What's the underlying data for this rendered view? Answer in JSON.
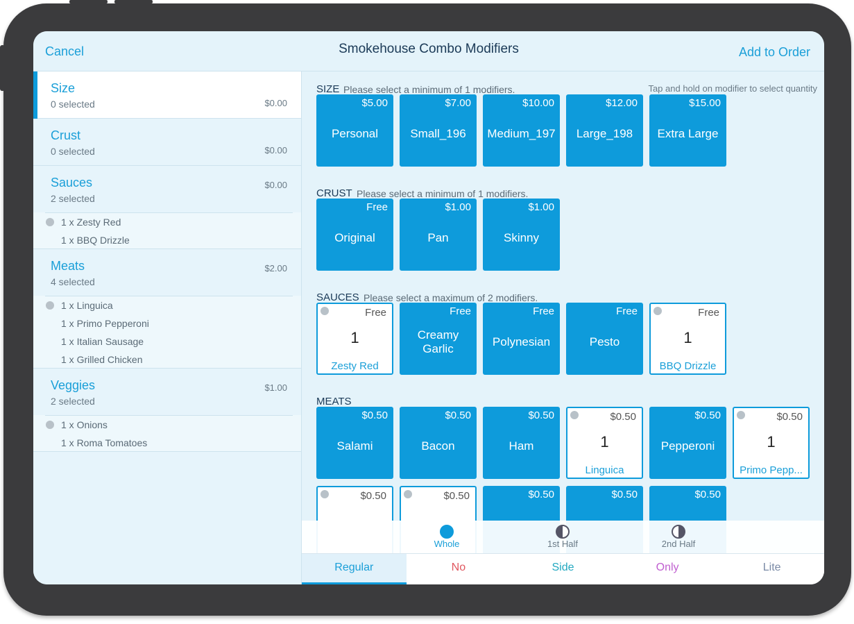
{
  "header": {
    "cancel": "Cancel",
    "title": "Smokehouse Combo Modifiers",
    "add": "Add to Order"
  },
  "groups": [
    {
      "name": "Size",
      "selected": "0 selected",
      "price": "$0.00",
      "items": []
    },
    {
      "name": "Crust",
      "selected": "0 selected",
      "price": "$0.00",
      "items": []
    },
    {
      "name": "Sauces",
      "selected": "2 selected",
      "price": "$0.00",
      "items": [
        "1 x Zesty Red",
        "1 x BBQ Drizzle"
      ]
    },
    {
      "name": "Meats",
      "selected": "4 selected",
      "price": "$2.00",
      "items": [
        "1 x Linguica",
        "1 x Primo Pepperoni",
        "1 x Italian Sausage",
        "1 x Grilled Chicken"
      ]
    },
    {
      "name": "Veggies",
      "selected": "2 selected",
      "price": "$1.00",
      "items": [
        "1 x Onions",
        "1 x Roma Tomatoes"
      ]
    }
  ],
  "note": "Tap and hold on modifier to select quantity",
  "sections": [
    {
      "title": "SIZE",
      "hint": "Please select a minimum of 1 modifiers.",
      "options": [
        {
          "price": "$5.00",
          "name": "Personal"
        },
        {
          "price": "$7.00",
          "name": "Small_196"
        },
        {
          "price": "$10.00",
          "name": "Medium_197"
        },
        {
          "price": "$12.00",
          "name": "Large_198"
        },
        {
          "price": "$15.00",
          "name": "Extra Large"
        }
      ]
    },
    {
      "title": "CRUST",
      "hint": "Please select a minimum of 1 modifiers.",
      "options": [
        {
          "price": "Free",
          "name": "Original"
        },
        {
          "price": "$1.00",
          "name": "Pan"
        },
        {
          "price": "$1.00",
          "name": "Skinny"
        }
      ]
    },
    {
      "title": "SAUCES",
      "hint": "Please select a maximum of 2 modifiers.",
      "options": [
        {
          "price": "Free",
          "name": "Zesty Red",
          "count": 1
        },
        {
          "price": "Free",
          "name": "Creamy Garlic"
        },
        {
          "price": "Free",
          "name": "Polynesian"
        },
        {
          "price": "Free",
          "name": "Pesto"
        },
        {
          "price": "Free",
          "name": "BBQ Drizzle",
          "count": 1
        }
      ]
    },
    {
      "title": "MEATS",
      "options": [
        {
          "price": "$0.50",
          "name": "Salami"
        },
        {
          "price": "$0.50",
          "name": "Bacon"
        },
        {
          "price": "$0.50",
          "name": "Ham"
        },
        {
          "price": "$0.50",
          "name": "Linguica",
          "count": 1
        },
        {
          "price": "$0.50",
          "name": "Pepperoni"
        },
        {
          "price": "$0.50",
          "name": "Primo Pepp...",
          "count": 1
        },
        {
          "price": "$0.50",
          "selected": true
        },
        {
          "price": "$0.50",
          "selected": true
        },
        {
          "price": "$0.50"
        },
        {
          "price": "$0.50"
        },
        {
          "price": "$0.50"
        }
      ]
    }
  ],
  "portion": [
    "Whole",
    "1st Half",
    "2nd Half"
  ],
  "tabs": [
    "Regular",
    "No",
    "Side",
    "Only",
    "Lite"
  ]
}
